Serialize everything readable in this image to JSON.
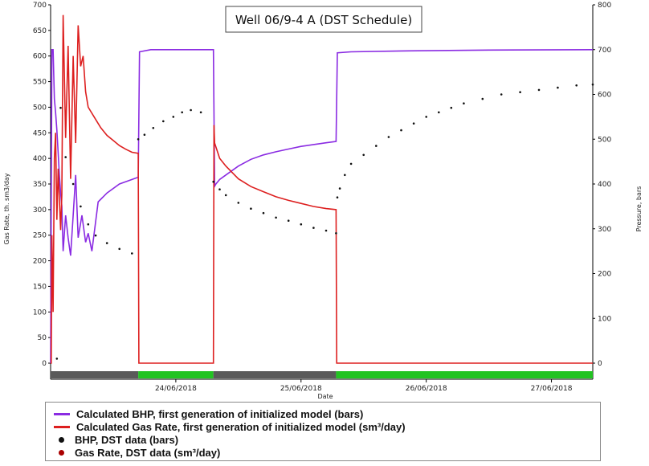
{
  "chart_data": {
    "type": "line",
    "title": "Well 06/9-4 A (DST Schedule)",
    "xlabel": "Date",
    "ylabel_left": "Gas Rate, th. sm3/day",
    "ylabel_right": "Pressure, bars",
    "x_ticks": [
      "24/06/2018",
      "25/06/2018",
      "26/06/2018",
      "27/06/2018"
    ],
    "x_tick_days": [
      1,
      2,
      3,
      4
    ],
    "x_range_days": [
      0.0,
      4.33
    ],
    "y_left_range": [
      0,
      700
    ],
    "y_left_ticks": [
      0,
      50,
      100,
      150,
      200,
      250,
      300,
      350,
      400,
      450,
      500,
      550,
      600,
      650,
      700
    ],
    "y_right_range": [
      0,
      800
    ],
    "y_right_ticks": [
      0,
      100,
      200,
      300,
      400,
      500,
      600,
      700,
      800
    ],
    "schedule_bar": {
      "colors": {
        "flow": "#5a5a5a",
        "shut": "#22c322"
      },
      "segments": [
        {
          "from": 0.0,
          "to": 0.7,
          "state": "flow"
        },
        {
          "from": 0.7,
          "to": 1.3,
          "state": "shut"
        },
        {
          "from": 1.3,
          "to": 2.28,
          "state": "flow"
        },
        {
          "from": 2.28,
          "to": 4.33,
          "state": "shut"
        }
      ]
    },
    "series": [
      {
        "name": "Calculated BHP, first generation of initialized model (bars)",
        "axis": "right",
        "style": "line",
        "color": "#8a2be2",
        "x": [
          0.0,
          0.01,
          0.02,
          0.03,
          0.04,
          0.05,
          0.06,
          0.07,
          0.08,
          0.09,
          0.1,
          0.12,
          0.14,
          0.16,
          0.18,
          0.2,
          0.22,
          0.25,
          0.28,
          0.3,
          0.33,
          0.38,
          0.45,
          0.55,
          0.65,
          0.7,
          0.71,
          0.8,
          1.3,
          1.31,
          1.32,
          1.35,
          1.4,
          1.5,
          1.6,
          1.7,
          1.8,
          1.9,
          2.0,
          2.1,
          2.2,
          2.28,
          2.29,
          2.4,
          2.8,
          3.5,
          4.33
        ],
        "y": [
          0,
          700,
          700,
          590,
          560,
          520,
          470,
          420,
          380,
          350,
          250,
          330,
          280,
          240,
          330,
          420,
          280,
          330,
          270,
          290,
          250,
          360,
          380,
          400,
          410,
          415,
          695,
          700,
          700,
          395,
          400,
          410,
          420,
          440,
          455,
          465,
          472,
          478,
          484,
          488,
          492,
          495,
          693,
          695,
          697,
          699,
          700
        ]
      },
      {
        "name": "Calculated Gas Rate, first generation of initialized model (sm³/day)",
        "axis": "left",
        "style": "line",
        "color": "#dd1f1f",
        "x": [
          0.0,
          0.005,
          0.01,
          0.02,
          0.03,
          0.04,
          0.05,
          0.06,
          0.08,
          0.09,
          0.1,
          0.12,
          0.14,
          0.16,
          0.18,
          0.2,
          0.22,
          0.24,
          0.26,
          0.28,
          0.3,
          0.35,
          0.4,
          0.45,
          0.5,
          0.55,
          0.6,
          0.65,
          0.7,
          0.705,
          1.3,
          1.305,
          1.31,
          1.35,
          1.4,
          1.5,
          1.6,
          1.7,
          1.8,
          1.9,
          2.0,
          2.1,
          2.2,
          2.28,
          2.285,
          4.33
        ],
        "y": [
          0,
          0,
          250,
          100,
          400,
          450,
          280,
          380,
          260,
          330,
          680,
          440,
          620,
          360,
          600,
          430,
          660,
          580,
          600,
          530,
          500,
          480,
          460,
          445,
          435,
          425,
          418,
          412,
          410,
          0,
          0,
          465,
          430,
          400,
          385,
          360,
          345,
          335,
          325,
          318,
          312,
          306,
          302,
          300,
          0,
          0
        ]
      },
      {
        "name": "BHP, DST data (bars)",
        "axis": "right",
        "style": "scatter",
        "color": "#111111",
        "x": [
          0.05,
          0.08,
          0.12,
          0.18,
          0.24,
          0.3,
          0.36,
          0.45,
          0.55,
          0.65,
          0.7,
          0.75,
          0.82,
          0.9,
          0.98,
          1.05,
          1.12,
          1.2,
          1.3,
          1.35,
          1.4,
          1.5,
          1.6,
          1.7,
          1.8,
          1.9,
          2.0,
          2.1,
          2.2,
          2.28,
          2.29,
          2.31,
          2.35,
          2.4,
          2.5,
          2.6,
          2.7,
          2.8,
          2.9,
          3.0,
          3.1,
          3.2,
          3.3,
          3.45,
          3.6,
          3.75,
          3.9,
          4.05,
          4.2,
          4.33
        ],
        "y": [
          10,
          570,
          460,
          400,
          350,
          310,
          285,
          268,
          255,
          245,
          500,
          510,
          525,
          540,
          550,
          560,
          565,
          560,
          405,
          388,
          375,
          358,
          345,
          335,
          325,
          318,
          310,
          302,
          296,
          290,
          370,
          390,
          420,
          445,
          465,
          485,
          505,
          520,
          535,
          550,
          560,
          570,
          580,
          590,
          600,
          605,
          610,
          615,
          620,
          622
        ]
      },
      {
        "name": "Gas Rate, DST data (sm³/day)",
        "axis": "left",
        "style": "scatter",
        "color": "#aa0000",
        "x": [],
        "y": []
      }
    ]
  }
}
